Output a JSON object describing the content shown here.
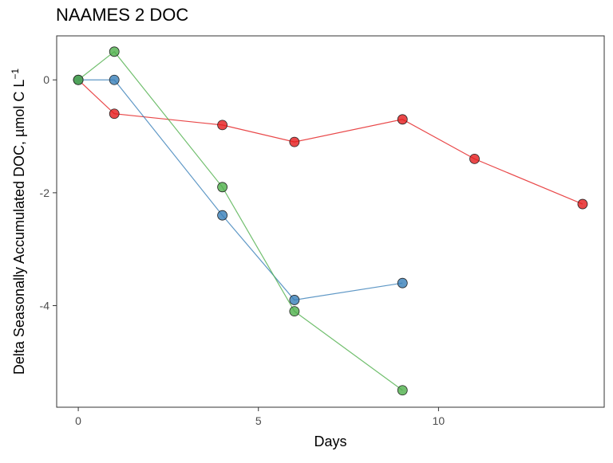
{
  "chart_data": {
    "type": "line",
    "title": "NAAMES 2 DOC",
    "xlabel": "Days",
    "ylabel": "Delta Seasonally Accumulated DOC, µmol C L",
    "ylabel_superscript": "−1",
    "xlim": [
      -0.6,
      14.6
    ],
    "ylim": [
      -5.8,
      0.78
    ],
    "x_ticks": [
      0,
      5,
      10
    ],
    "y_ticks": [
      0,
      -2,
      -4
    ],
    "grid": false,
    "legend": "none",
    "series": [
      {
        "color": "#e41a1c",
        "x": [
          0,
          1,
          4,
          6,
          9,
          11,
          14
        ],
        "y": [
          0,
          -0.6,
          -0.8,
          -1.1,
          -0.7,
          -1.4,
          -2.2
        ]
      },
      {
        "color": "#377eb8",
        "x": [
          0,
          1,
          4,
          6,
          9
        ],
        "y": [
          0,
          0,
          -2.4,
          -3.9,
          -3.6
        ]
      },
      {
        "color": "#4daf4a",
        "x": [
          0,
          1,
          4,
          6,
          9
        ],
        "y": [
          0,
          0.5,
          -1.9,
          -4.1,
          -5.5
        ]
      }
    ]
  }
}
